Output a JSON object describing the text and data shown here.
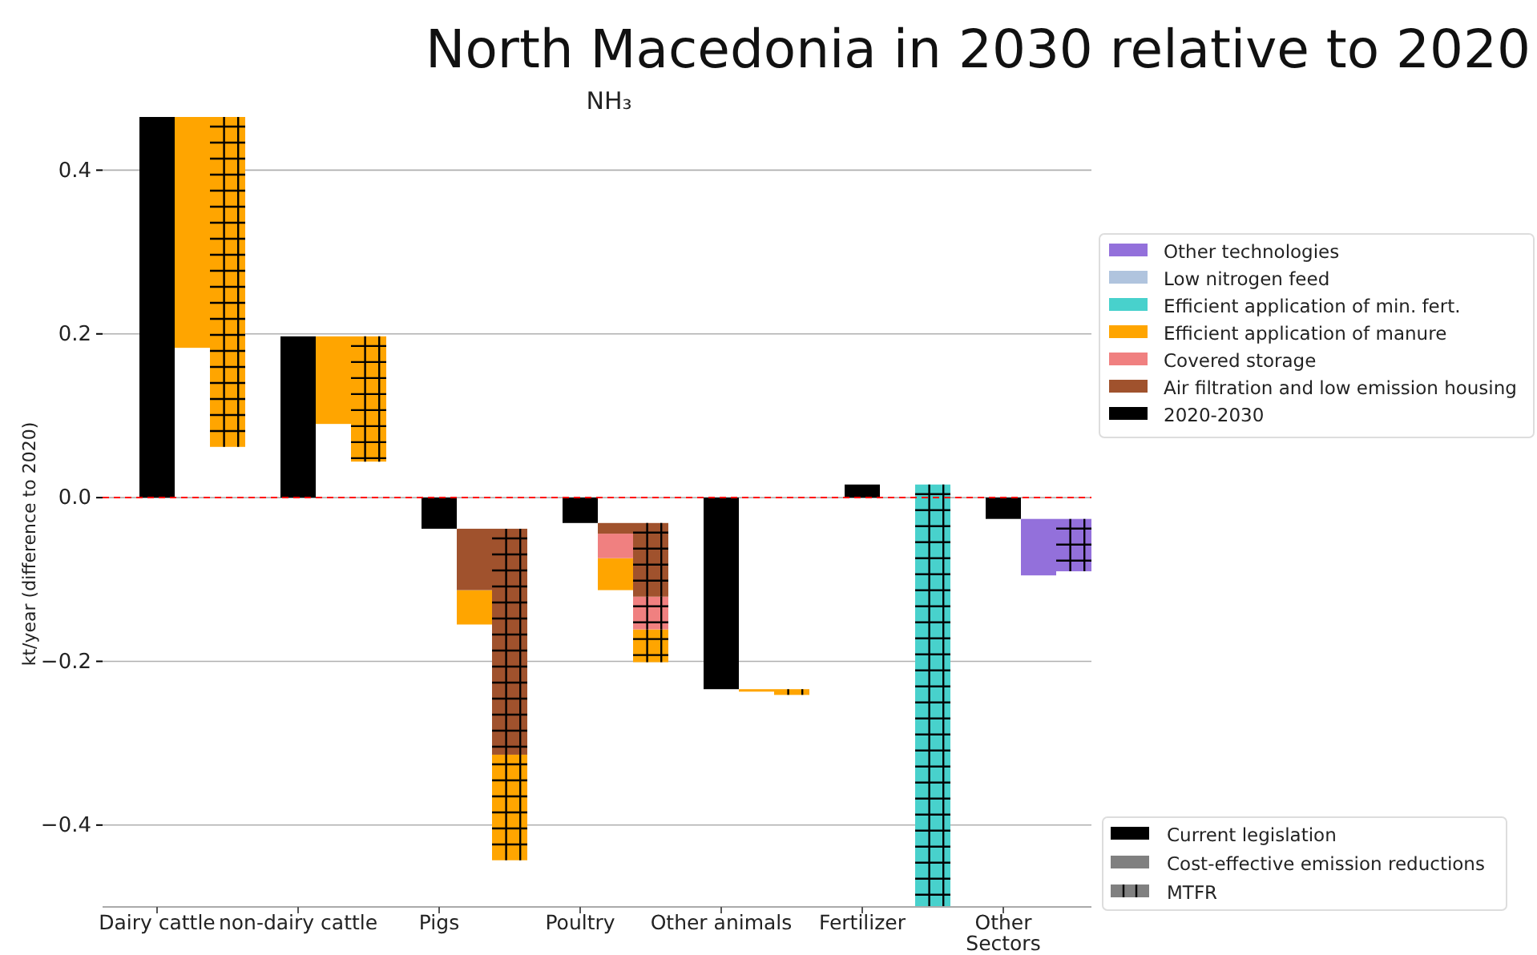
{
  "chart_data": {
    "type": "bar",
    "title": "North Macedonia in 2030 relative to 2020",
    "subtitle": "NH₃",
    "ylabel": "kt/year (difference to 2020)",
    "categories": [
      "Dairy cattle",
      null,
      null,
      null,
      "non-dairy cattle",
      null,
      null,
      null,
      "Pigs",
      null,
      null,
      null,
      "Poultry",
      null,
      null,
      null,
      "Other animals",
      null,
      null,
      null,
      "Fertilizer",
      null,
      null,
      null,
      "Other\nSectors",
      null,
      null
    ],
    "ylim": [
      -0.5,
      0.465
    ],
    "yticks": [
      {
        "value": -0.4,
        "label": "−0.4"
      },
      {
        "value": -0.2,
        "label": "−0.2"
      },
      {
        "value": 0,
        "label": "0.0"
      },
      {
        "value": 0.2,
        "label": "0.2"
      },
      {
        "value": 0.4,
        "label": "0.4"
      }
    ],
    "grid": "y",
    "legend": "right",
    "ref_lines": [
      {
        "axis": "y",
        "value": 0,
        "color": "#ff0000",
        "line_style": "dashed"
      }
    ],
    "annotations": [
      "Current legislation",
      "Cost-effective emission reductions",
      "MTFR"
    ],
    "series": [
      {
        "name": "Other technologies",
        "color": "#9370db",
        "values": [
          null,
          null,
          null,
          null,
          null,
          null,
          null,
          null,
          null,
          null,
          null,
          null,
          null,
          null,
          null,
          null,
          null,
          null,
          null,
          null,
          null,
          null,
          null,
          null,
          null,
          -0.069,
          -0.064
        ],
        "base": [
          null,
          null,
          null,
          null,
          null,
          null,
          null,
          null,
          null,
          null,
          null,
          null,
          null,
          null,
          null,
          null,
          null,
          null,
          null,
          null,
          null,
          null,
          null,
          null,
          null,
          -0.026,
          -0.026
        ]
      },
      {
        "name": "Low nitrogen feed",
        "color": "#b0c4de",
        "values": [
          null,
          null,
          null,
          null,
          null,
          null,
          null,
          null,
          null,
          null,
          null,
          null,
          null,
          null,
          null,
          null,
          null,
          null,
          null,
          null,
          null,
          null,
          null,
          null,
          null,
          null,
          null
        ]
      },
      {
        "name": "Efficient application of min. fert.",
        "color": "#48d1cc",
        "values": [
          null,
          null,
          null,
          null,
          null,
          null,
          null,
          null,
          null,
          null,
          null,
          null,
          null,
          null,
          null,
          null,
          null,
          null,
          null,
          null,
          null,
          null,
          -0.516,
          null,
          null,
          null,
          null
        ],
        "base": [
          null,
          null,
          null,
          null,
          null,
          null,
          null,
          null,
          null,
          null,
          null,
          null,
          null,
          null,
          null,
          null,
          null,
          null,
          null,
          null,
          null,
          null,
          0.016,
          null,
          null,
          null,
          null
        ]
      },
      {
        "name": "Efficient application of manure",
        "color": "#ffa500",
        "values": [
          null,
          -0.282,
          -0.403,
          null,
          null,
          -0.107,
          -0.153,
          null,
          null,
          -0.042,
          -0.129,
          null,
          null,
          -0.039,
          -0.04,
          null,
          null,
          -0.003,
          -0.007,
          null,
          null,
          null,
          null,
          null,
          null,
          null,
          null
        ],
        "base": [
          null,
          0.465,
          0.465,
          null,
          null,
          0.197,
          0.197,
          null,
          null,
          -0.113,
          -0.314,
          null,
          null,
          -0.074,
          -0.161,
          null,
          null,
          -0.234,
          -0.234,
          null,
          null,
          null,
          null,
          null,
          null,
          null,
          null
        ]
      },
      {
        "name": "Covered storage",
        "color": "#f08080",
        "values": [
          null,
          null,
          null,
          null,
          null,
          null,
          null,
          null,
          null,
          null,
          null,
          null,
          null,
          -0.03,
          -0.04,
          null,
          null,
          null,
          null,
          null,
          null,
          null,
          null,
          null,
          null,
          null,
          null
        ],
        "base": [
          null,
          null,
          null,
          null,
          null,
          null,
          null,
          null,
          null,
          null,
          null,
          null,
          null,
          -0.044,
          -0.121,
          null,
          null,
          null,
          null,
          null,
          null,
          null,
          null,
          null,
          null,
          null,
          null
        ]
      },
      {
        "name": "Air filtration and low emission housing",
        "color": "#a0522d",
        "values": [
          null,
          null,
          null,
          null,
          null,
          null,
          null,
          null,
          null,
          -0.075,
          -0.276,
          null,
          null,
          -0.013,
          -0.09,
          null,
          null,
          null,
          null,
          null,
          null,
          null,
          null,
          null,
          null,
          null,
          null
        ],
        "base": [
          null,
          null,
          null,
          null,
          null,
          null,
          null,
          null,
          null,
          -0.038,
          -0.038,
          null,
          null,
          -0.031,
          -0.031,
          null,
          null,
          null,
          null,
          null,
          null,
          null,
          null,
          null,
          null,
          null,
          null
        ]
      },
      {
        "name": "2020-2030",
        "color": "#000000",
        "values": [
          0.465,
          null,
          null,
          null,
          0.197,
          null,
          null,
          null,
          -0.038,
          null,
          null,
          null,
          -0.031,
          null,
          null,
          null,
          -0.234,
          null,
          null,
          null,
          0.016,
          null,
          null,
          null,
          -0.026,
          null,
          null
        ]
      }
    ]
  }
}
